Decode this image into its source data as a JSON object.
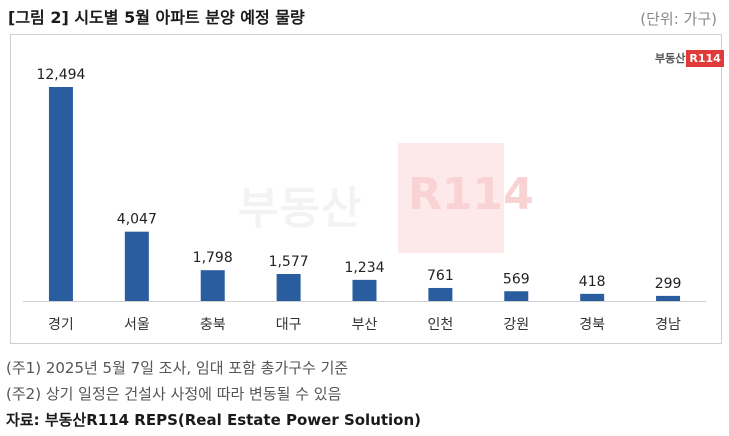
{
  "header": {
    "title": "[그림 2] 시도별 5월 아파트 분양 예정 물량",
    "unit": "(단위: 가구)"
  },
  "logo": {
    "text": "부동산",
    "badge": "R114"
  },
  "watermark": {
    "text": "부동산",
    "badge": "R114"
  },
  "colors": {
    "bar": "#2a5d9f",
    "axis": "#cfcfcf"
  },
  "chart_data": {
    "type": "bar",
    "categories": [
      "경기",
      "서울",
      "충북",
      "대구",
      "부산",
      "인천",
      "강원",
      "경북",
      "경남"
    ],
    "values": [
      12494,
      4047,
      1798,
      1577,
      1234,
      761,
      569,
      418,
      299
    ],
    "value_labels": [
      "12,494",
      "4,047",
      "1,798",
      "1,577",
      "1,234",
      "761",
      "569",
      "418",
      "299"
    ],
    "ylim": [
      0,
      12494
    ],
    "grid": false,
    "legend": "none"
  },
  "notes": [
    "(주1) 2025년 5월 7일 조사, 임대 포함 총가구수 기준",
    "(주2) 상기 일정은 건설사 사정에 따라 변동될 수 있음"
  ],
  "source": "자료: 부동산R114 REPS(Real Estate Power Solution)"
}
